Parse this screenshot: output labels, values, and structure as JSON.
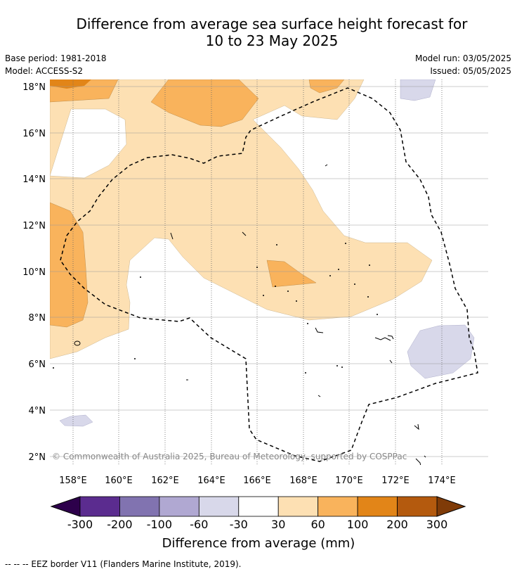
{
  "title_line1": "Difference from average sea surface height forecast for",
  "title_line2": "10 to 23 May 2025",
  "base_period": "Base period: 1981-2018",
  "model": "Model: ACCESS-S2",
  "model_run": "Model run: 03/05/2025",
  "issued": "Issued: 05/05/2025",
  "credit": "© Commonwealth of Australia 2025, Bureau of Meteorology, supported by COSPPac",
  "footnote": "--  --  -- EEZ border V11 (Flanders Marine Institute, 2019).",
  "map": {
    "lon_labels": [
      "158°E",
      "160°E",
      "162°E",
      "164°E",
      "166°E",
      "168°E",
      "170°E",
      "172°E",
      "174°E"
    ],
    "lat_labels": [
      "18°N",
      "16°N",
      "14°N",
      "12°N",
      "10°N",
      "8°N",
      "6°N",
      "4°N",
      "2°N"
    ],
    "lon_range": [
      157,
      176
    ],
    "lat_range": [
      1.5,
      18.3
    ]
  },
  "colorbar": {
    "title": "Difference from average (mm)",
    "tick_labels": [
      "-300",
      "-200",
      "-100",
      "-60",
      "-30",
      "30",
      "60",
      "100",
      "200",
      "300"
    ],
    "colors": [
      "#5b2c8f",
      "#8173b0",
      "#b0a8d2",
      "#d8d8ea",
      "#ffffff",
      "#fde0b3",
      "#f9b35c",
      "#e28518",
      "#b45a0e"
    ],
    "extend_low_color": "#2d004b",
    "extend_high_color": "#7f3b08"
  }
}
